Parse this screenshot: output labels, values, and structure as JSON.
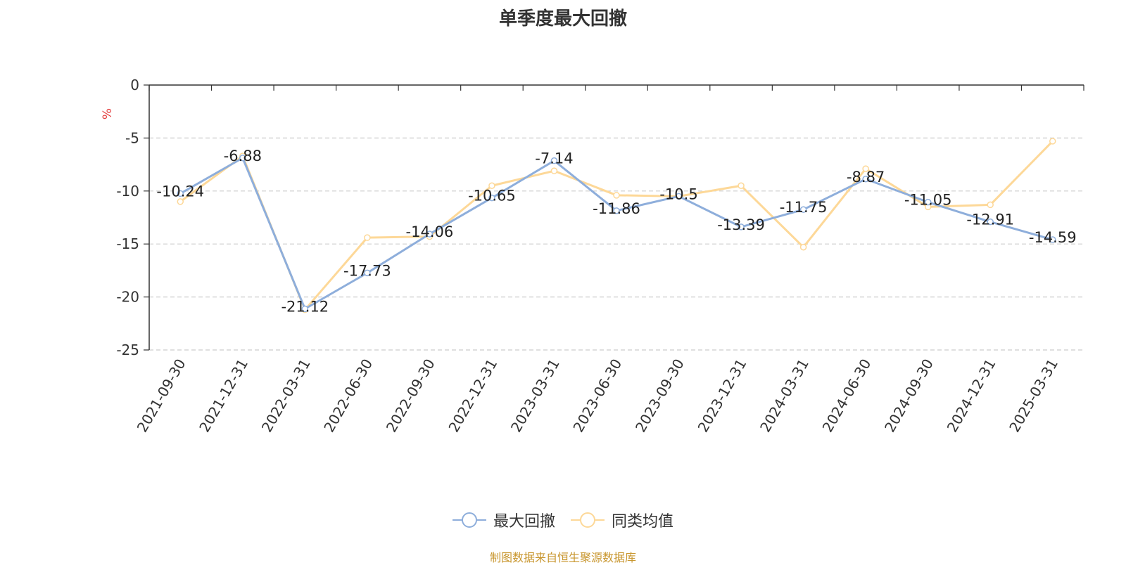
{
  "title": "单季度最大回撤",
  "footer": "制图数据来自恒生聚源数据库",
  "colors": {
    "series1": "#8eaedb",
    "series2": "#fdd898",
    "ylabel": "#e33f3f",
    "footer": "#c8962e"
  },
  "chart_data": {
    "type": "line",
    "title": "单季度最大回撤",
    "ylabel": "%",
    "ylim": [
      -25,
      0
    ],
    "yticks": [
      0,
      -5,
      -10,
      -15,
      -20,
      -25
    ],
    "grid": true,
    "legend_position": "bottom-center",
    "categories": [
      "2021-09-30",
      "2021-12-31",
      "2022-03-31",
      "2022-06-30",
      "2022-09-30",
      "2022-12-31",
      "2023-03-31",
      "2023-06-30",
      "2023-09-30",
      "2023-12-31",
      "2024-03-31",
      "2024-06-30",
      "2024-09-30",
      "2024-12-31",
      "2025-03-31"
    ],
    "series": [
      {
        "name": "最大回撤",
        "values": [
          -10.24,
          -6.88,
          -21.12,
          -17.73,
          -14.06,
          -10.65,
          -7.14,
          -11.86,
          -10.5,
          -13.39,
          -11.75,
          -8.87,
          -11.05,
          -12.91,
          -14.59
        ],
        "labels_shown": true
      },
      {
        "name": "同类均值",
        "values": [
          -11.0,
          -6.7,
          -21.2,
          -14.4,
          -14.3,
          -9.5,
          -8.1,
          -10.4,
          -10.5,
          -9.5,
          -15.3,
          -7.9,
          -11.5,
          -11.3,
          -5.3
        ],
        "labels_shown": false
      }
    ]
  }
}
